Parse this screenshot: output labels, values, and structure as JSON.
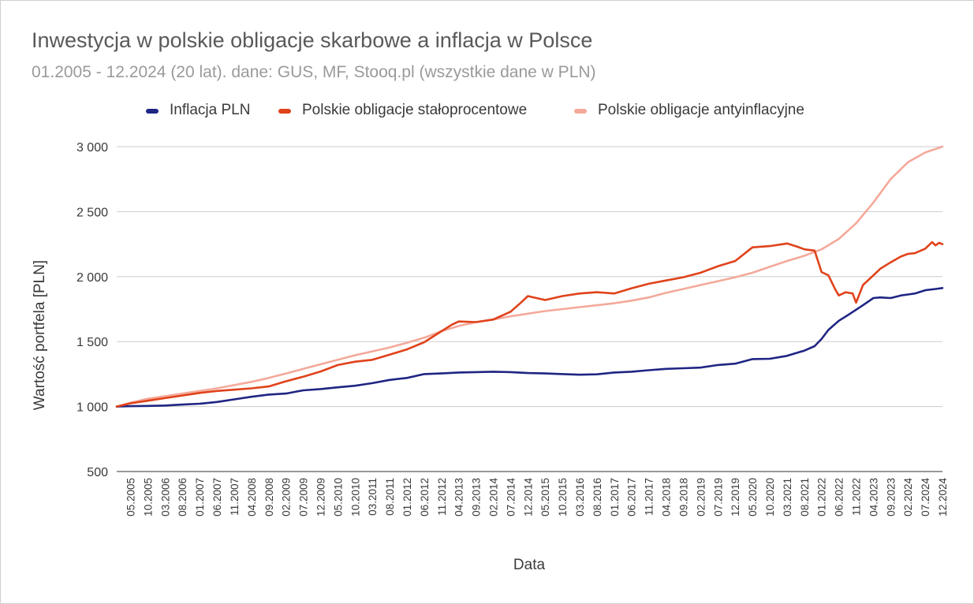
{
  "chart_data": {
    "type": "line",
    "title": "Inwestycja w polskie obligacje skarbowe a inflacja w Polsce",
    "subtitle": "01.2005 - 12.2024 (20 lat). dane: GUS, MF, Stooq.pl (wszystkie dane w PLN)",
    "xlabel": "Data",
    "ylabel": "Wartość portfela [PLN]",
    "ylim": [
      500,
      3000
    ],
    "yticks": [
      500,
      1000,
      1500,
      2000,
      2500,
      3000
    ],
    "ytick_labels": [
      "500",
      "1 000",
      "1 500",
      "2 000",
      "2 500",
      "3 000"
    ],
    "grid": true,
    "legend_position": "top",
    "x_tick_labels": [
      "05.2005",
      "10.2005",
      "03.2006",
      "08.2006",
      "01.2007",
      "06.2007",
      "11.2007",
      "04.2008",
      "09.2008",
      "02.2009",
      "07.2009",
      "12.2009",
      "05.2010",
      "10.2010",
      "03.2011",
      "08.2011",
      "01.2012",
      "06.2012",
      "11.2012",
      "04.2013",
      "09.2013",
      "02.2014",
      "07.2014",
      "12.2014",
      "05.2015",
      "10.2015",
      "03.2016",
      "08.2016",
      "01.2017",
      "06.2017",
      "11.2017",
      "04.2018",
      "09.2018",
      "02.2019",
      "07.2019",
      "12.2019",
      "05.2020",
      "10.2020",
      "03.2021",
      "08.2021",
      "01.2022",
      "06.2022",
      "11.2022",
      "04.2023",
      "09.2023",
      "02.2024",
      "07.2024",
      "12.2024"
    ],
    "x_start": "01.2005",
    "x_end": "12.2024",
    "series": [
      {
        "name": "Inflacja PLN",
        "color": "#1f2583",
        "x": [
          "01.2005",
          "05.2005",
          "10.2005",
          "03.2006",
          "08.2006",
          "01.2007",
          "06.2007",
          "11.2007",
          "04.2008",
          "09.2008",
          "02.2009",
          "07.2009",
          "12.2009",
          "05.2010",
          "10.2010",
          "03.2011",
          "08.2011",
          "01.2012",
          "06.2012",
          "11.2012",
          "04.2013",
          "09.2013",
          "02.2014",
          "07.2014",
          "12.2014",
          "05.2015",
          "10.2015",
          "03.2016",
          "08.2016",
          "01.2017",
          "06.2017",
          "11.2017",
          "04.2018",
          "09.2018",
          "02.2019",
          "07.2019",
          "12.2019",
          "05.2020",
          "10.2020",
          "03.2021",
          "08.2021",
          "11.2021",
          "01.2022",
          "03.2022",
          "06.2022",
          "09.2022",
          "11.2022",
          "01.2023",
          "04.2023",
          "06.2023",
          "09.2023",
          "12.2023",
          "02.2024",
          "04.2024",
          "07.2024",
          "10.2024",
          "12.2024"
        ],
        "values": [
          1000,
          1003,
          1005,
          1008,
          1015,
          1022,
          1035,
          1055,
          1075,
          1092,
          1100,
          1125,
          1135,
          1148,
          1160,
          1180,
          1205,
          1220,
          1250,
          1255,
          1262,
          1265,
          1268,
          1265,
          1258,
          1255,
          1250,
          1245,
          1248,
          1262,
          1268,
          1280,
          1290,
          1295,
          1300,
          1320,
          1330,
          1365,
          1368,
          1390,
          1430,
          1465,
          1520,
          1590,
          1660,
          1710,
          1745,
          1780,
          1835,
          1840,
          1835,
          1855,
          1862,
          1870,
          1895,
          1905,
          1912
        ]
      },
      {
        "name": "Polskie obligacje stałoprocentowe",
        "color": "#e0421a",
        "x": [
          "01.2005",
          "05.2005",
          "10.2005",
          "03.2006",
          "08.2006",
          "01.2007",
          "06.2007",
          "11.2007",
          "04.2008",
          "09.2008",
          "02.2009",
          "07.2009",
          "12.2009",
          "05.2010",
          "10.2010",
          "03.2011",
          "08.2011",
          "01.2012",
          "06.2012",
          "11.2012",
          "02.2013",
          "04.2013",
          "09.2013",
          "02.2014",
          "07.2014",
          "10.2014",
          "12.2014",
          "05.2015",
          "10.2015",
          "03.2016",
          "08.2016",
          "01.2017",
          "06.2017",
          "11.2017",
          "04.2018",
          "09.2018",
          "02.2019",
          "07.2019",
          "12.2019",
          "05.2020",
          "10.2020",
          "03.2021",
          "06.2021",
          "08.2021",
          "11.2021",
          "01.2022",
          "03.2022",
          "05.2022",
          "06.2022",
          "08.2022",
          "10.2022",
          "11.2022",
          "01.2023",
          "04.2023",
          "06.2023",
          "09.2023",
          "12.2023",
          "02.2024",
          "04.2024",
          "07.2024",
          "09.2024",
          "10.2024",
          "11.2024",
          "12.2024"
        ],
        "values": [
          1000,
          1025,
          1045,
          1065,
          1085,
          1105,
          1120,
          1130,
          1140,
          1155,
          1195,
          1230,
          1270,
          1320,
          1345,
          1360,
          1400,
          1440,
          1495,
          1580,
          1630,
          1655,
          1650,
          1670,
          1730,
          1800,
          1850,
          1820,
          1850,
          1870,
          1880,
          1870,
          1910,
          1945,
          1970,
          1995,
          2030,
          2080,
          2120,
          2225,
          2235,
          2255,
          2230,
          2210,
          2200,
          2035,
          2010,
          1900,
          1855,
          1880,
          1870,
          1800,
          1935,
          2010,
          2060,
          2110,
          2155,
          2175,
          2180,
          2215,
          2265,
          2240,
          2260,
          2250
        ]
      },
      {
        "name": "Polskie obligacje antyinflacyjne",
        "color": "#f4a99a",
        "x": [
          "01.2005",
          "05.2005",
          "10.2005",
          "03.2006",
          "08.2006",
          "01.2007",
          "06.2007",
          "11.2007",
          "04.2008",
          "09.2008",
          "02.2009",
          "07.2009",
          "12.2009",
          "05.2010",
          "10.2010",
          "03.2011",
          "08.2011",
          "01.2012",
          "06.2012",
          "11.2012",
          "04.2013",
          "09.2013",
          "02.2014",
          "07.2014",
          "12.2014",
          "05.2015",
          "10.2015",
          "03.2016",
          "08.2016",
          "01.2017",
          "06.2017",
          "11.2017",
          "04.2018",
          "09.2018",
          "02.2019",
          "07.2019",
          "12.2019",
          "05.2020",
          "10.2020",
          "03.2021",
          "08.2021",
          "01.2022",
          "06.2022",
          "11.2022",
          "04.2023",
          "09.2023",
          "02.2024",
          "07.2024",
          "12.2024"
        ],
        "values": [
          1000,
          1030,
          1060,
          1080,
          1100,
          1120,
          1140,
          1165,
          1190,
          1220,
          1255,
          1290,
          1325,
          1360,
          1395,
          1425,
          1455,
          1490,
          1530,
          1580,
          1620,
          1650,
          1670,
          1695,
          1715,
          1735,
          1750,
          1765,
          1780,
          1795,
          1815,
          1840,
          1875,
          1905,
          1935,
          1965,
          1995,
          2030,
          2075,
          2120,
          2160,
          2210,
          2290,
          2410,
          2570,
          2750,
          2880,
          2955,
          3000
        ]
      }
    ]
  }
}
